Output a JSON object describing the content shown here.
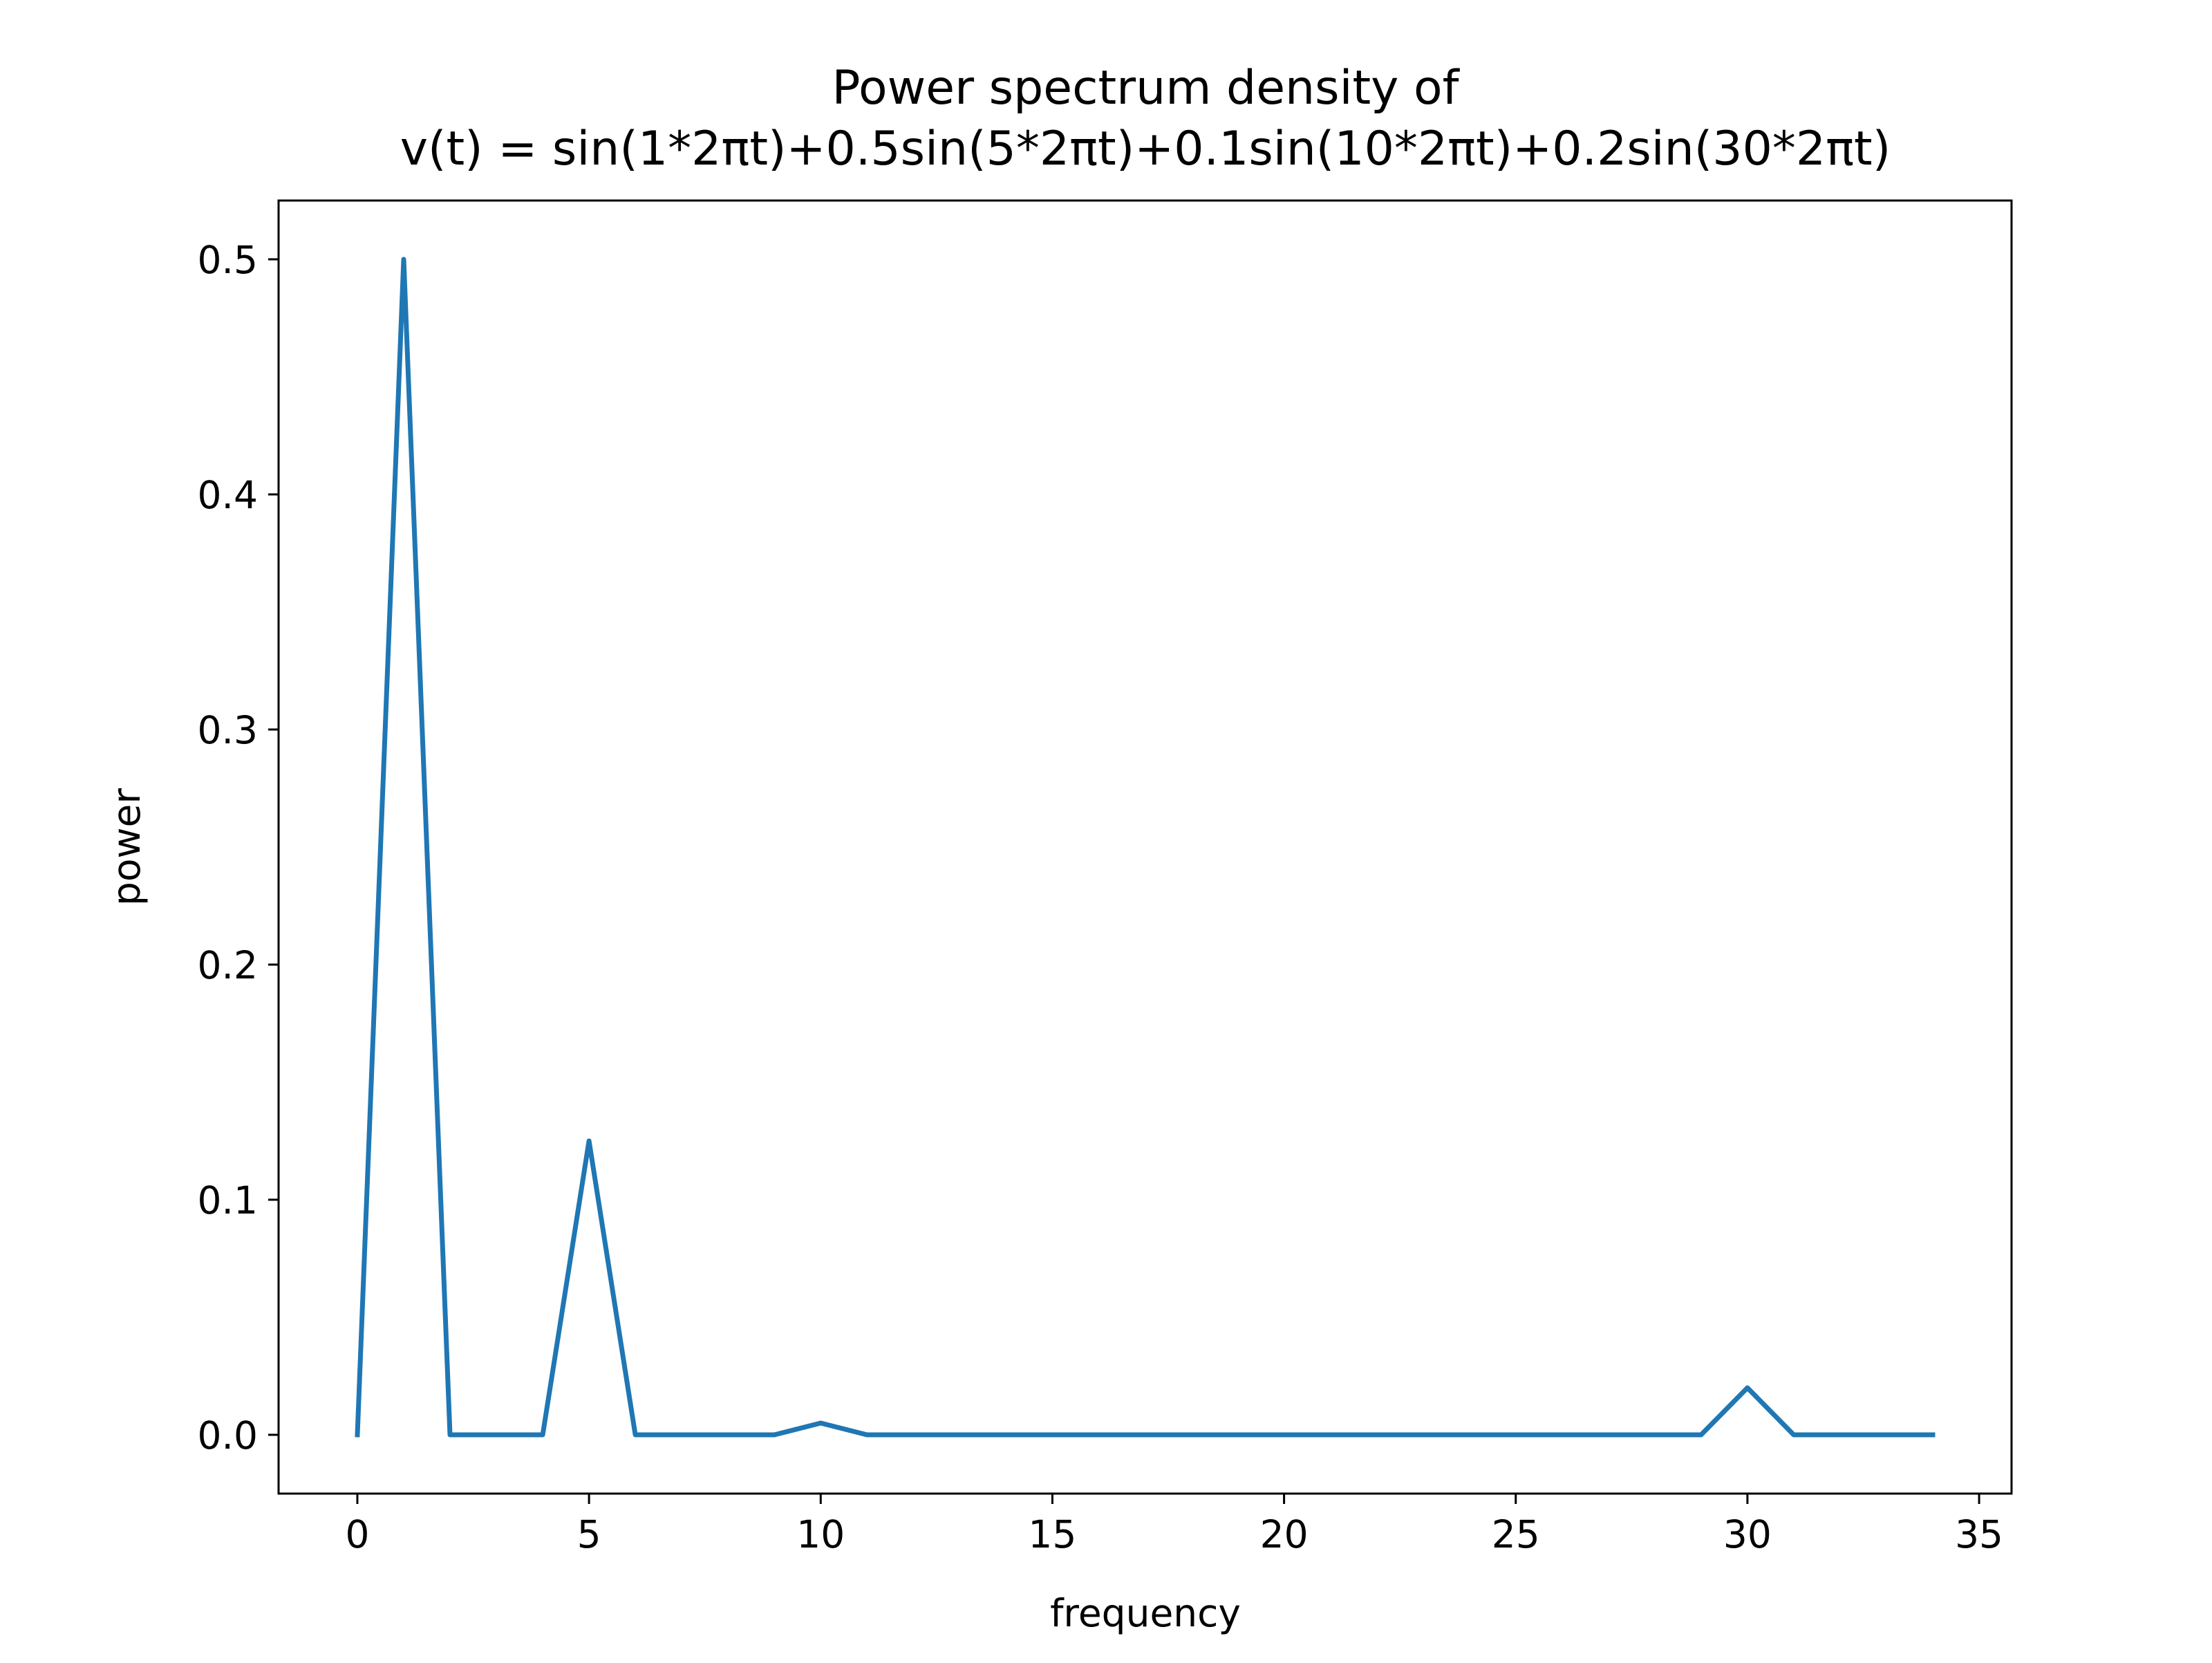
{
  "chart_data": {
    "type": "line",
    "title_line1": "Power spectrum density of",
    "title_line2": "v(t) = sin(1*2πt)+0.5sin(5*2πt)+0.1sin(10*2πt)+0.2sin(30*2πt)",
    "xlabel": "frequency",
    "ylabel": "power",
    "xlim": [
      -1.7,
      35.7
    ],
    "ylim": [
      -0.025,
      0.525
    ],
    "xticks": [
      0,
      5,
      10,
      15,
      20,
      25,
      30,
      35
    ],
    "xtick_labels": [
      "0",
      "5",
      "10",
      "15",
      "20",
      "25",
      "30",
      "35"
    ],
    "yticks": [
      0.0,
      0.1,
      0.2,
      0.3,
      0.4,
      0.5
    ],
    "ytick_labels": [
      "0.0",
      "0.1",
      "0.2",
      "0.3",
      "0.4",
      "0.5"
    ],
    "grid": false,
    "series_color": "#1f77b4",
    "x": [
      0,
      1,
      2,
      3,
      4,
      5,
      6,
      7,
      8,
      9,
      10,
      11,
      12,
      13,
      14,
      15,
      16,
      17,
      18,
      19,
      20,
      21,
      22,
      23,
      24,
      25,
      26,
      27,
      28,
      29,
      30,
      31,
      32,
      33,
      34
    ],
    "series": [
      {
        "values": [
          0,
          0.5,
          0,
          0,
          0,
          0.125,
          0,
          0,
          0,
          0,
          0.005,
          0,
          0,
          0,
          0,
          0,
          0,
          0,
          0,
          0,
          0,
          0,
          0,
          0,
          0,
          0,
          0,
          0,
          0,
          0,
          0.02,
          0,
          0,
          0,
          0
        ]
      }
    ]
  }
}
